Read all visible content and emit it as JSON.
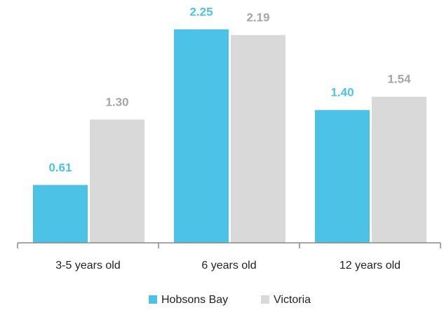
{
  "chart_data": {
    "type": "bar",
    "categories": [
      "3-5 years old",
      "6 years old",
      "12 years old"
    ],
    "series": [
      {
        "name": "Hobsons Bay",
        "color": "#4cc3e6",
        "label_color": "#4cc3e6",
        "values": [
          0.61,
          2.25,
          1.4
        ],
        "value_labels": [
          "0.61",
          "2.25",
          "1.40"
        ]
      },
      {
        "name": "Victoria",
        "color": "#d9d9d9",
        "label_color": "#a6a6a6",
        "values": [
          1.3,
          2.19,
          1.54
        ],
        "value_labels": [
          "1.30",
          "2.19",
          "1.54"
        ]
      }
    ]
  }
}
